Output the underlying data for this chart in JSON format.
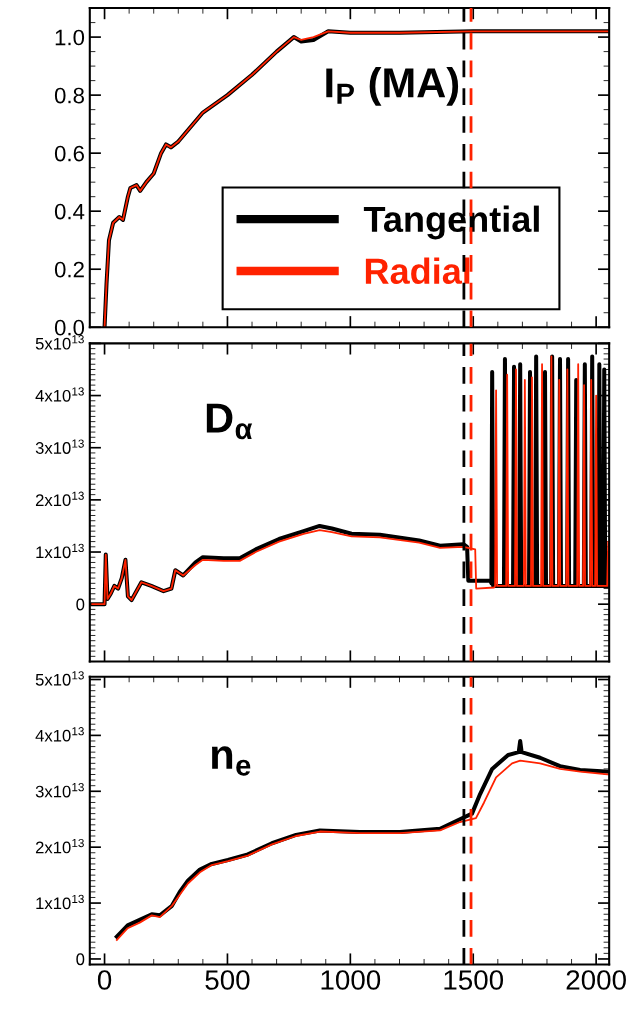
{
  "chart_data": [
    {
      "type": "line",
      "annotations": [
        "I$_{P}$ (MA)"
      ],
      "legend": "bottom",
      "tick_labels": "y",
      "xlim": [
        -60,
        2053
      ],
      "xticks": [
        0,
        500,
        1000,
        1500,
        2000
      ],
      "ylim": [
        0,
        1.1
      ],
      "yticks": [
        {
          "value": 0,
          "label": "0.0"
        },
        {
          "value": 0.2,
          "label": "0.2"
        },
        {
          "value": 0.4,
          "label": "0.4"
        },
        {
          "value": 0.6,
          "label": "0.6"
        },
        {
          "value": 0.8,
          "label": "0.8"
        },
        {
          "value": 1.0,
          "label": "1.0"
        }
      ],
      "ref_lines": [
        {
          "axis": "x",
          "value": 1462,
          "color": "#000000",
          "line_style": "dashed"
        },
        {
          "axis": "x",
          "value": 1491,
          "color": "#ff2200",
          "line_style": "dashed"
        }
      ],
      "series": [
        {
          "name": "Tangential",
          "color": "#000000",
          "x": [
            0,
            8,
            18,
            35,
            60,
            75,
            95,
            105,
            130,
            145,
            170,
            200,
            230,
            250,
            270,
            300,
            400,
            500,
            600,
            700,
            770,
            800,
            850,
            910,
            1000,
            1200,
            1500,
            1800,
            2053
          ],
          "values": [
            0,
            0.15,
            0.3,
            0.36,
            0.38,
            0.37,
            0.45,
            0.48,
            0.49,
            0.47,
            0.5,
            0.53,
            0.6,
            0.63,
            0.62,
            0.64,
            0.74,
            0.8,
            0.87,
            0.95,
            1.0,
            0.985,
            0.99,
            1.02,
            1.015,
            1.015,
            1.02,
            1.02,
            1.02
          ]
        },
        {
          "name": "Radial",
          "color": "#ff2200",
          "x": [
            0,
            8,
            18,
            35,
            60,
            75,
            95,
            105,
            130,
            145,
            170,
            200,
            230,
            250,
            270,
            300,
            400,
            500,
            600,
            700,
            770,
            800,
            850,
            910,
            1000,
            1200,
            1500,
            1800,
            2053
          ],
          "values": [
            0,
            0.15,
            0.3,
            0.36,
            0.38,
            0.37,
            0.45,
            0.48,
            0.49,
            0.47,
            0.5,
            0.53,
            0.6,
            0.63,
            0.62,
            0.64,
            0.74,
            0.8,
            0.87,
            0.95,
            1.0,
            0.99,
            1.0,
            1.02,
            1.015,
            1.015,
            1.02,
            1.02,
            1.02
          ]
        }
      ]
    },
    {
      "type": "line",
      "annotations": [
        "D$_{α}$"
      ],
      "tick_labels": "y",
      "xlim": [
        -60,
        2053
      ],
      "xticks": [
        0,
        500,
        1000,
        1500,
        2000
      ],
      "ylim": [
        -11000000000000.0,
        50000000000000.0
      ],
      "yticks": [
        {
          "value": 0,
          "label": "0"
        },
        {
          "value": 10000000000000.0,
          "label": "1x10$^{13}$"
        },
        {
          "value": 20000000000000.0,
          "label": "2x10$^{13}$"
        },
        {
          "value": 30000000000000.0,
          "label": "3x10$^{13}$"
        },
        {
          "value": 40000000000000.0,
          "label": "4x10$^{13}$"
        },
        {
          "value": 50000000000000.0,
          "label": "5x10$^{13}$"
        }
      ],
      "ref_lines": [
        {
          "axis": "x",
          "value": 1462,
          "color": "#000000",
          "line_style": "dashed"
        },
        {
          "axis": "x",
          "value": 1491,
          "color": "#ff2200",
          "line_style": "dashed"
        }
      ],
      "series": [
        {
          "color": "#000000",
          "x": [
            -50,
            0,
            5,
            12,
            25,
            40,
            55,
            70,
            85,
            95,
            110,
            150,
            190,
            240,
            272,
            288,
            320,
            370,
            400,
            485,
            550,
            615,
            710,
            810,
            875,
            925,
            1005,
            1120,
            1280,
            1365,
            1460,
            1475,
            1480,
            1570,
            1574,
            1577,
            1581,
            1625,
            1629,
            1633,
            1662,
            1666,
            1670,
            1687,
            1691,
            1695,
            1727,
            1731,
            1735,
            1752,
            1756,
            1760,
            1788,
            1792,
            1796,
            1817,
            1821,
            1825,
            1849,
            1853,
            1857,
            1882,
            1886,
            1890,
            1915,
            1919,
            1923,
            1950,
            1954,
            1958,
            1980,
            1984,
            1988,
            2009,
            2013,
            2017,
            2029,
            2033,
            2037,
            2053
          ],
          "values": [
            0,
            0,
            9500000000000.0,
            1000000000000.0,
            2000000000000.0,
            3500000000000.0,
            3000000000000.0,
            5000000000000.0,
            8500000000000.0,
            1500000000000.0,
            800000000000.0,
            4200000000000.0,
            3500000000000.0,
            2500000000000.0,
            3000000000000.0,
            6500000000000.0,
            5500000000000.0,
            8000000000000.0,
            9000000000000.0,
            8800000000000.0,
            8800000000000.0,
            10500000000000.0,
            12500000000000.0,
            14000000000000.0,
            15000000000000.0,
            14500000000000.0,
            13500000000000.0,
            13300000000000.0,
            12200000000000.0,
            11200000000000.0,
            11500000000000.0,
            11000000000000.0,
            4500000000000.0,
            4500000000000.0,
            4000000000000.0,
            44500000000000.0,
            3500000000000.0,
            3500000000000.0,
            47000000000000.0,
            3500000000000.0,
            3500000000000.0,
            45500000000000.0,
            3500000000000.0,
            3500000000000.0,
            46000000000000.0,
            3500000000000.0,
            3500000000000.0,
            44500000000000.0,
            3500000000000.0,
            3500000000000.0,
            47500000000000.0,
            3500000000000.0,
            3500000000000.0,
            44500000000000.0,
            3500000000000.0,
            3500000000000.0,
            47500000000000.0,
            3500000000000.0,
            3500000000000.0,
            47000000000000.0,
            3500000000000.0,
            3500000000000.0,
            47000000000000.0,
            3500000000000.0,
            3500000000000.0,
            43000000000000.0,
            3500000000000.0,
            3500000000000.0,
            46000000000000.0,
            3500000000000.0,
            3500000000000.0,
            47500000000000.0,
            3500000000000.0,
            3500000000000.0,
            46000000000000.0,
            3500000000000.0,
            3500000000000.0,
            45000000000000.0,
            3500000000000.0,
            3500000000000.0
          ]
        },
        {
          "color": "#ff2200",
          "x": [
            -50,
            0,
            5,
            12,
            25,
            40,
            55,
            70,
            85,
            95,
            110,
            150,
            190,
            240,
            272,
            288,
            320,
            370,
            400,
            485,
            550,
            615,
            710,
            810,
            875,
            925,
            1005,
            1120,
            1280,
            1365,
            1460,
            1508,
            1512,
            1585,
            1589,
            1593,
            1597,
            1634,
            1638,
            1642,
            1670,
            1674,
            1678,
            1706,
            1710,
            1714,
            1735,
            1739,
            1743,
            1776,
            1780,
            1784,
            1814,
            1818,
            1822,
            1846,
            1850,
            1854,
            1879,
            1883,
            1887,
            1923,
            1927,
            1931,
            1947,
            1951,
            1955,
            1976,
            1980,
            1984,
            1996,
            2000,
            2004,
            2045,
            2049,
            2053
          ],
          "values": [
            0,
            0,
            9500000000000.0,
            1000000000000.0,
            2000000000000.0,
            3500000000000.0,
            3000000000000.0,
            5000000000000.0,
            8500000000000.0,
            1500000000000.0,
            800000000000.0,
            4200000000000.0,
            3500000000000.0,
            2500000000000.0,
            3000000000000.0,
            6500000000000.0,
            5500000000000.0,
            7500000000000.0,
            8500000000000.0,
            8300000000000.0,
            8300000000000.0,
            10000000000000.0,
            12000000000000.0,
            13500000000000.0,
            14200000000000.0,
            13800000000000.0,
            13000000000000.0,
            12800000000000.0,
            11800000000000.0,
            10800000000000.0,
            11000000000000.0,
            10500000000000.0,
            3000000000000.0,
            3200000000000.0,
            3500000000000.0,
            41000000000000.0,
            3500000000000.0,
            3500000000000.0,
            44000000000000.0,
            3500000000000.0,
            3500000000000.0,
            45000000000000.0,
            3500000000000.0,
            3500000000000.0,
            43000000000000.0,
            3500000000000.0,
            3500000000000.0,
            43500000000000.0,
            3500000000000.0,
            3500000000000.0,
            46000000000000.0,
            3500000000000.0,
            3500000000000.0,
            47500000000000.0,
            3500000000000.0,
            3500000000000.0,
            43000000000000.0,
            3500000000000.0,
            3500000000000.0,
            45000000000000.0,
            3500000000000.0,
            3500000000000.0,
            46000000000000.0,
            3500000000000.0,
            3500000000000.0,
            42000000000000.0,
            3500000000000.0,
            3500000000000.0,
            43000000000000.0,
            3500000000000.0,
            3500000000000.0,
            40000000000000.0,
            3500000000000.0,
            3500000000000.0,
            12000000000000.0,
            3500000000000.0
          ]
        }
      ]
    },
    {
      "type": "line",
      "annotations": [
        "n$_{e}$"
      ],
      "xlim": [
        -60,
        2053
      ],
      "xticks": [
        0,
        500,
        1000,
        1500,
        2000
      ],
      "ylim": [
        -1000000000000.0,
        50500000000000.0
      ],
      "yticks": [
        {
          "value": 0,
          "label": "0"
        },
        {
          "value": 10000000000000.0,
          "label": "1x10$^{13}$"
        },
        {
          "value": 20000000000000.0,
          "label": "2x10$^{13}$"
        },
        {
          "value": 30000000000000.0,
          "label": "3x10$^{13}$"
        },
        {
          "value": 40000000000000.0,
          "label": "4x10$^{13}$"
        },
        {
          "value": 50000000000000.0,
          "label": "5x10$^{13}$"
        }
      ],
      "ref_lines": [
        {
          "axis": "x",
          "value": 1462,
          "color": "#000000",
          "line_style": "dashed"
        },
        {
          "axis": "x",
          "value": 1491,
          "color": "#ff2200",
          "line_style": "dashed"
        }
      ],
      "series": [
        {
          "color": "#000000",
          "x": [
            50,
            94,
            143,
            192,
            225,
            274,
            306,
            339,
            388,
            436,
            502,
            583,
            681,
            779,
            876,
            1039,
            1202,
            1365,
            1446,
            1495,
            1528,
            1577,
            1642,
            1685,
            1691,
            1697,
            1772,
            1853,
            1935,
            2053
          ],
          "values": [
            4000000000000.0,
            6000000000000.0,
            7000000000000.0,
            8000000000000.0,
            7800000000000.0,
            9500000000000.0,
            12000000000000.0,
            14000000000000.0,
            16000000000000.0,
            17000000000000.0,
            17700000000000.0,
            18700000000000.0,
            20700000000000.0,
            22200000000000.0,
            23000000000000.0,
            22700000000000.0,
            22700000000000.0,
            23300000000000.0,
            25000000000000.0,
            26000000000000.0,
            29500000000000.0,
            34000000000000.0,
            36500000000000.0,
            37000000000000.0,
            39000000000000.0,
            37000000000000.0,
            36000000000000.0,
            34500000000000.0,
            33800000000000.0,
            33500000000000.0
          ]
        },
        {
          "color": "#ff2200",
          "x": [
            50,
            94,
            143,
            192,
            225,
            274,
            306,
            339,
            388,
            436,
            502,
            583,
            681,
            779,
            876,
            1039,
            1202,
            1365,
            1446,
            1511,
            1544,
            1593,
            1658,
            1691,
            1772,
            1853,
            1935,
            2053
          ],
          "values": [
            3400000000000.0,
            5500000000000.0,
            6500000000000.0,
            7800000000000.0,
            7500000000000.0,
            9500000000000.0,
            11500000000000.0,
            13500000000000.0,
            15500000000000.0,
            16800000000000.0,
            17500000000000.0,
            18500000000000.0,
            20500000000000.0,
            22000000000000.0,
            22800000000000.0,
            22500000000000.0,
            22500000000000.0,
            23000000000000.0,
            24500000000000.0,
            25200000000000.0,
            28000000000000.0,
            32500000000000.0,
            35000000000000.0,
            35500000000000.0,
            35000000000000.0,
            34000000000000.0,
            33500000000000.0,
            33000000000000.0
          ]
        }
      ]
    }
  ]
}
